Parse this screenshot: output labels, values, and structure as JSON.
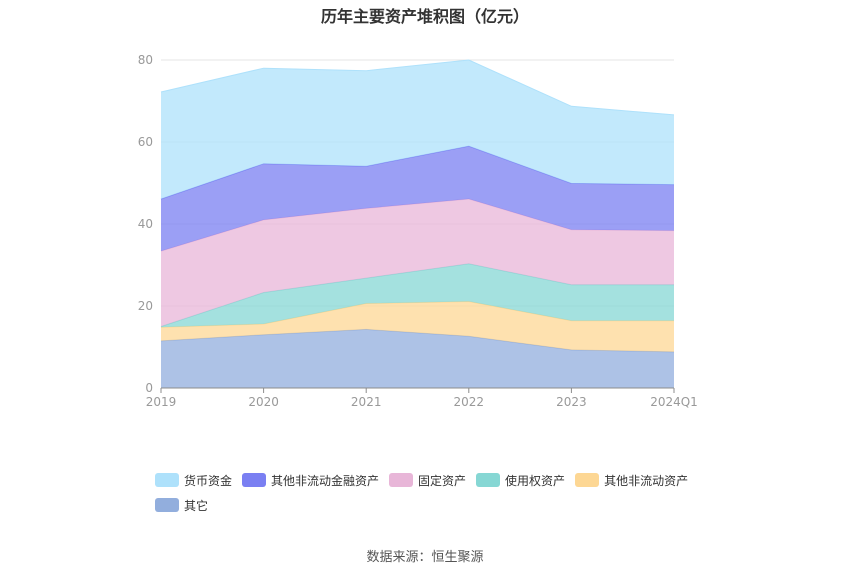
{
  "page": {
    "title": "历年主要资产堆积图（亿元）",
    "source": "数据来源：恒生聚源"
  },
  "chart_data": {
    "type": "area",
    "stacked": true,
    "title": "历年主要资产堆积图（亿元）",
    "x": [
      "2019",
      "2020",
      "2021",
      "2022",
      "2023",
      "2024Q1"
    ],
    "ylim": [
      0,
      80
    ],
    "yticks": [
      0,
      20,
      40,
      60,
      80
    ],
    "grid": true,
    "legend_position": "bottom",
    "series": [
      {
        "name": "其它",
        "color": "#92aedd",
        "values": [
          11.5,
          13.0,
          14.3,
          12.6,
          9.3,
          8.8
        ]
      },
      {
        "name": "其他非流动资产",
        "color": "#fdd794",
        "values": [
          3.3,
          2.6,
          6.3,
          8.5,
          7.1,
          7.6
        ]
      },
      {
        "name": "使用权资产",
        "color": "#86d7d4",
        "values": [
          0.2,
          7.7,
          6.2,
          9.2,
          8.8,
          8.8
        ]
      },
      {
        "name": "固定资产",
        "color": "#e8b6d8",
        "values": [
          18.4,
          17.7,
          17.0,
          15.8,
          13.4,
          13.2
        ]
      },
      {
        "name": "其他非流动金融资产",
        "color": "#7a7ff2",
        "values": [
          12.7,
          13.7,
          10.3,
          12.9,
          11.3,
          11.2
        ]
      },
      {
        "name": "货币资金",
        "color": "#aee1fb",
        "values": [
          26.1,
          23.3,
          23.3,
          21.0,
          18.8,
          17.0
        ]
      }
    ]
  },
  "legend_order": [
    "货币资金",
    "其他非流动金融资产",
    "固定资产",
    "使用权资产",
    "其他非流动资产",
    "其它"
  ]
}
